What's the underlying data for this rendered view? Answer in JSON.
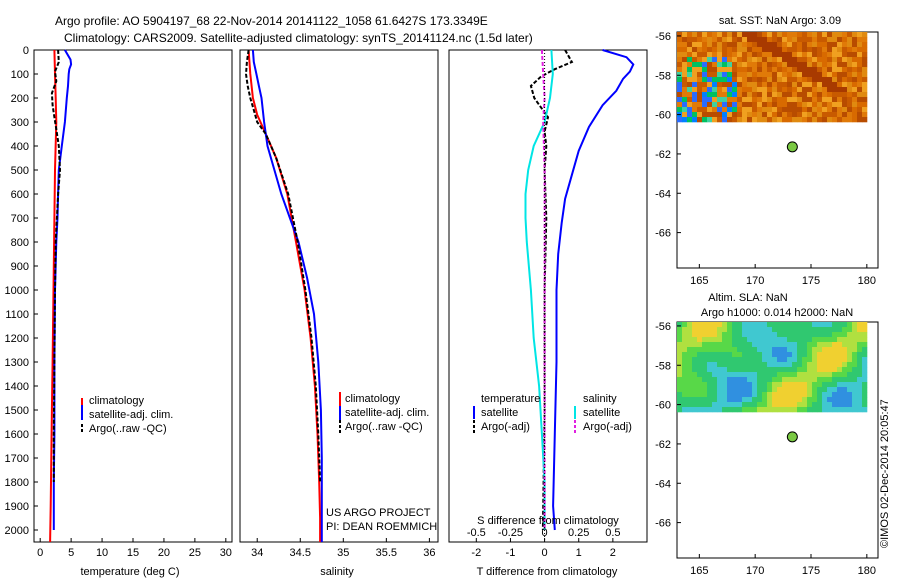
{
  "header": {
    "line1": "Argo profile: AO 5904197_68 22-Nov-2014 20141122_1058 61.6427S 173.3349E",
    "line2": "Climatology: CARS2009. Satellite-adjusted climatology: synTS_20141124.nc (1.5d later)"
  },
  "colors": {
    "climatology": "#ff0000",
    "satellite": "#0000ff",
    "argo": "#000000",
    "sat_salinity": "#00e5e5",
    "argo_salinity_adj": "#e020e0",
    "argo_marker": "#7ac943"
  },
  "legend_t": {
    "items": [
      "climatology",
      "satellite-adj. clim.",
      "Argo(..raw -QC)"
    ]
  },
  "legend_s": {
    "items": [
      "climatology",
      "satellite-adj. clim.",
      "Argo(..raw -QC)"
    ]
  },
  "legend_d": {
    "temperature": "temperature",
    "salinity": "salinity",
    "t_items": [
      "satellite",
      "Argo(-adj)"
    ],
    "s_items": [
      "satellite",
      "Argo(-adj)"
    ]
  },
  "credits": {
    "line1": "US ARGO PROJECT",
    "line2": "PI: DEAN ROEMMICH"
  },
  "side": {
    "sst_title": "sat. SST: NaN Argo: 3.09",
    "sla_title1": "Altim. SLA: NaN",
    "sla_title2": "Argo h1000: 0.014 h2000: NaN",
    "watermark": "©IMOS 02-Dec-2014 20:05:47"
  },
  "chart_data": [
    {
      "type": "line",
      "xlabel": "temperature (deg C)",
      "ylabel": "",
      "xlim": [
        -1,
        31
      ],
      "ylim": [
        2050,
        0
      ],
      "xticks": [
        0,
        5,
        10,
        15,
        20,
        25,
        30
      ],
      "yticks": [
        0,
        100,
        200,
        300,
        400,
        500,
        600,
        700,
        800,
        900,
        1000,
        1100,
        1200,
        1300,
        1400,
        1500,
        1600,
        1700,
        1800,
        1900,
        2000
      ],
      "series": [
        {
          "name": "climatology",
          "x": [
            2.3,
            2.4,
            2.5,
            2.6,
            2.4,
            2.3,
            2.2,
            2.1,
            2.0,
            1.9,
            1.8,
            1.7,
            1.6
          ],
          "y": [
            0,
            100,
            200,
            300,
            500,
            700,
            900,
            1100,
            1300,
            1500,
            1700,
            1900,
            2050
          ]
        },
        {
          "name": "satellite-adj. clim.",
          "x": [
            4.0,
            4.9,
            5.0,
            4.7,
            4.6,
            4.5,
            4.3,
            4.0,
            3.5,
            3.0,
            2.9,
            2.8,
            2.6,
            2.4,
            2.3,
            2.3,
            2.2,
            2.2
          ],
          "y": [
            0,
            40,
            60,
            80,
            100,
            150,
            200,
            300,
            400,
            500,
            600,
            700,
            800,
            1000,
            1300,
            1600,
            1800,
            2000
          ]
        },
        {
          "name": "Argo(..raw -QC)",
          "x": [
            2.9,
            3.0,
            2.4,
            2.6,
            1.9,
            2.0,
            2.3,
            2.6,
            3.0,
            3.2,
            2.9,
            2.7,
            2.5,
            2.4,
            2.3,
            2.2,
            2.2
          ],
          "y": [
            0,
            50,
            90,
            130,
            180,
            230,
            280,
            330,
            400,
            500,
            600,
            700,
            800,
            1000,
            1300,
            1600,
            1800
          ]
        }
      ]
    },
    {
      "type": "line",
      "xlabel": "salinity",
      "xlim": [
        33.8,
        36.1
      ],
      "ylim": [
        2050,
        0
      ],
      "xticks": [
        34,
        34.5,
        35,
        35.5,
        36
      ],
      "series": [
        {
          "name": "climatology",
          "x": [
            33.9,
            33.92,
            33.95,
            34.0,
            34.1,
            34.22,
            34.35,
            34.45,
            34.55,
            34.62,
            34.67,
            34.7,
            34.72,
            34.73,
            34.73
          ],
          "y": [
            0,
            100,
            200,
            270,
            350,
            450,
            600,
            800,
            1000,
            1200,
            1400,
            1600,
            1800,
            1950,
            2050
          ]
        },
        {
          "name": "satellite-adj. clim.",
          "x": [
            33.95,
            33.96,
            33.99,
            34.02,
            34.05,
            34.08,
            34.12,
            34.2,
            34.28,
            34.38,
            34.48,
            34.58,
            34.66,
            34.71,
            34.74,
            34.75,
            34.75
          ],
          "y": [
            0,
            50,
            100,
            150,
            200,
            300,
            400,
            500,
            600,
            700,
            800,
            950,
            1100,
            1300,
            1500,
            1700,
            2050
          ]
        },
        {
          "name": "Argo(..raw -QC)",
          "x": [
            33.9,
            33.88,
            33.87,
            33.89,
            33.92,
            33.96,
            34.0,
            34.1,
            34.22,
            34.36,
            34.47,
            34.56,
            34.63,
            34.68,
            34.71,
            34.73
          ],
          "y": [
            0,
            50,
            100,
            150,
            200,
            250,
            300,
            350,
            450,
            600,
            800,
            1000,
            1200,
            1400,
            1600,
            1800
          ]
        }
      ]
    },
    {
      "type": "line",
      "xlabel": "T difference from climatology",
      "xlabel_top": "S difference from climatology",
      "xlim": [
        -2.8,
        3.0
      ],
      "xticks": [
        -2,
        -1,
        0,
        1,
        2
      ],
      "xticks_top": [
        -0.5,
        -0.25,
        0,
        0.25,
        0.5
      ],
      "ylim": [
        2050,
        0
      ],
      "series": [
        {
          "name": "satellite (temperature)",
          "x": [
            1.7,
            2.4,
            2.6,
            2.5,
            2.3,
            2.1,
            1.7,
            1.3,
            1.0,
            0.8,
            0.6,
            0.5,
            0.4,
            0.35,
            0.35,
            0.3,
            0.25,
            0.3
          ],
          "y": [
            0,
            30,
            60,
            90,
            120,
            170,
            230,
            320,
            420,
            520,
            620,
            720,
            850,
            1000,
            1300,
            1600,
            1900,
            2000
          ]
        },
        {
          "name": "Argo(-adj) (temperature)",
          "x": [
            0.6,
            0.8,
            0.3,
            -0.1,
            -0.4,
            -0.3,
            0.1,
            0.0,
            0.05,
            0.0,
            0.05,
            0.0,
            0.0,
            -0.05
          ],
          "y": [
            0,
            50,
            80,
            110,
            150,
            200,
            280,
            340,
            400,
            500,
            700,
            1000,
            1500,
            2000
          ]
        },
        {
          "name": "satellite (salinity)",
          "x": [
            0.05,
            0.06,
            0.04,
            0.0,
            -0.08,
            -0.12,
            -0.14,
            -0.14,
            -0.13,
            -0.1,
            -0.08,
            -0.04,
            -0.02,
            0.0,
            0.0
          ],
          "y": [
            0,
            100,
            200,
            300,
            400,
            500,
            600,
            700,
            800,
            1000,
            1200,
            1400,
            1600,
            1800,
            2000
          ]
        },
        {
          "name": "Argo(-adj) (salinity)",
          "x": [
            -0.02,
            -0.01,
            0.0,
            -0.01,
            0.0,
            0.0,
            0.0
          ],
          "y": [
            0,
            100,
            200,
            300,
            500,
            1000,
            2000
          ]
        }
      ]
    },
    {
      "type": "heatmap",
      "title": "sat. SST: NaN Argo: 3.09",
      "xlim": [
        163,
        181
      ],
      "ylim": [
        -67.8,
        -55.8
      ],
      "xticks": [
        165,
        170,
        175,
        180
      ],
      "yticks": [
        -56,
        -58,
        -60,
        -62,
        -64,
        -66
      ],
      "argo_position": {
        "lon": 173.33,
        "lat": -61.64
      }
    },
    {
      "type": "heatmap",
      "title": "Altim. SLA: NaN",
      "xlim": [
        163,
        181
      ],
      "ylim": [
        -67.8,
        -55.8
      ],
      "xticks": [
        165,
        170,
        175,
        180
      ],
      "yticks": [
        -56,
        -58,
        -60,
        -62,
        -64,
        -66
      ],
      "argo_position": {
        "lon": 173.33,
        "lat": -61.64
      }
    }
  ]
}
